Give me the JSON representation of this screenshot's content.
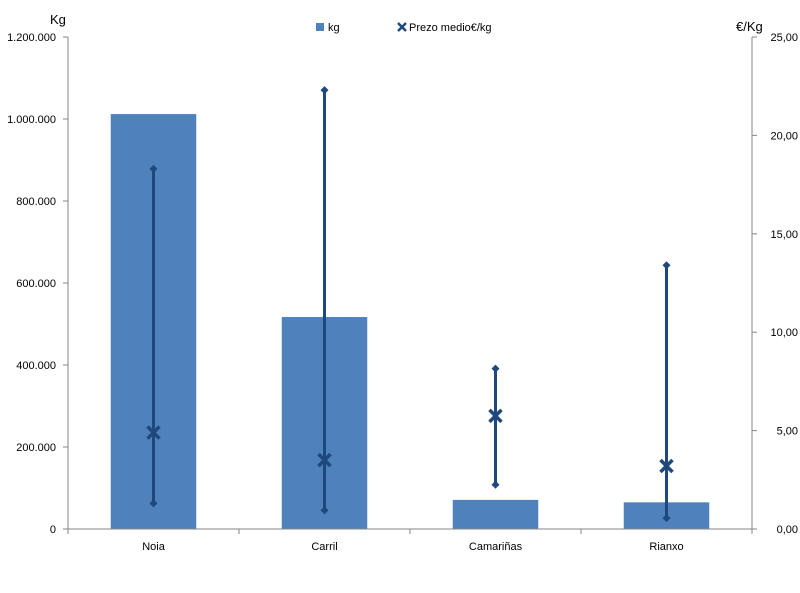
{
  "chart_data": {
    "type": "bar",
    "categories": [
      "Noia",
      "Carril",
      "Camariñas",
      "Rianxo"
    ],
    "series": [
      {
        "name": "kg",
        "axis": "left",
        "values": [
          1012000,
          517000,
          71000,
          65000
        ],
        "color": "#4f81bd"
      },
      {
        "name": "Prezo medio€/kg",
        "axis": "right",
        "type": "scatter",
        "values": [
          4.9,
          3.5,
          5.75,
          3.2
        ],
        "min": [
          1.3,
          0.95,
          2.25,
          0.55
        ],
        "max": [
          18.3,
          22.3,
          8.15,
          13.4
        ],
        "color": "#1f497d"
      }
    ],
    "left_axis": {
      "label": "Kg",
      "ylim": [
        0,
        1200000
      ],
      "ticks": [
        "0",
        "200.000",
        "400.000",
        "600.000",
        "800.000",
        "1.000.000",
        "1.200.000"
      ]
    },
    "right_axis": {
      "label": "€/Kg",
      "ylim": [
        0,
        25
      ],
      "ticks": [
        "0,00",
        "5,00",
        "10,00",
        "15,00",
        "20,00",
        "25,00"
      ]
    },
    "grid": false,
    "legend_position": "top"
  }
}
